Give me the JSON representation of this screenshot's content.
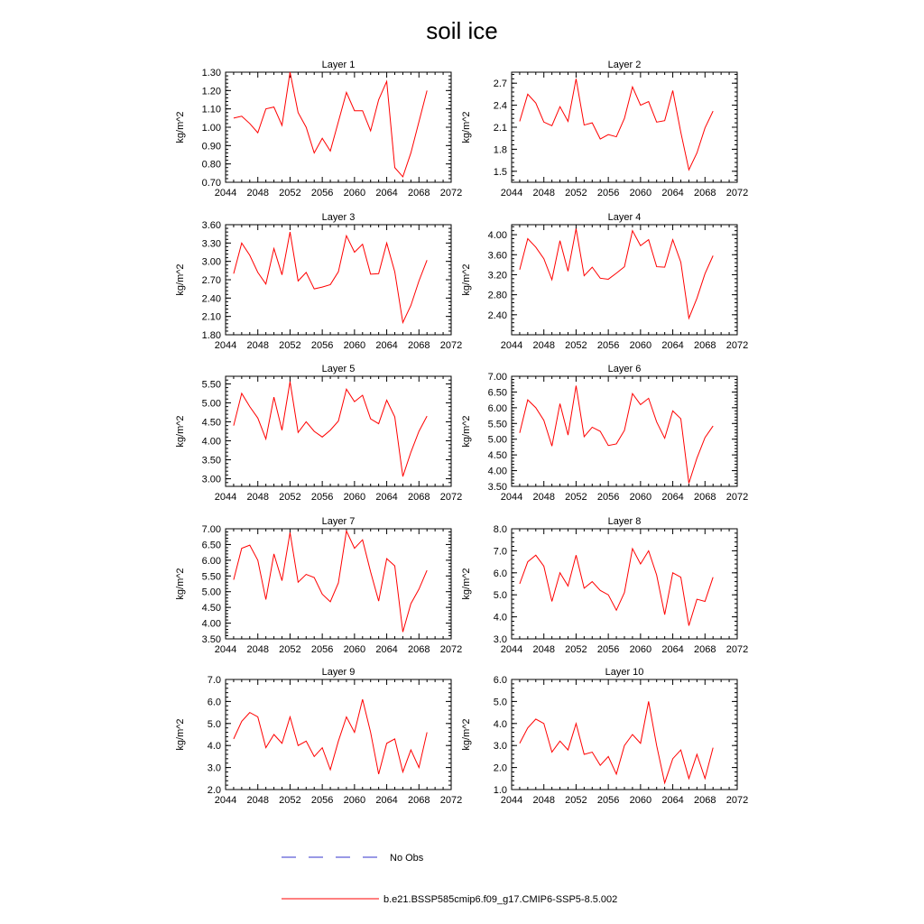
{
  "title": "soil ice",
  "legend": {
    "placement": "bottom",
    "entries": [
      {
        "label": "No Obs",
        "color": "#3333cc",
        "style": "dashed"
      },
      {
        "label": "b.e21.BSSP585cmip6.f09_g17.CMIP6-SSP5-8.5.002",
        "color": "#ff0000",
        "style": "solid"
      }
    ]
  },
  "colors": {
    "series": "#ff0000",
    "axis": "#000000"
  },
  "chart_data": [
    {
      "type": "line",
      "title": "Layer 1",
      "ylabel": "kg/m^2",
      "xlim": [
        2044,
        2072
      ],
      "ylim": [
        0.7,
        1.3
      ],
      "decimals": 2,
      "xticks": [
        2044,
        2048,
        2052,
        2056,
        2060,
        2064,
        2068,
        2072
      ],
      "yticks": [
        0.7,
        0.8,
        0.9,
        1.0,
        1.1,
        1.2,
        1.3
      ],
      "x": [
        2045,
        2046,
        2047,
        2048,
        2049,
        2050,
        2051,
        2052,
        2053,
        2054,
        2055,
        2056,
        2057,
        2058,
        2059,
        2060,
        2061,
        2062,
        2063,
        2064,
        2065,
        2066,
        2067,
        2068,
        2069
      ],
      "series": [
        {
          "name": "b.e21.BSSP585cmip6.f09_g17.CMIP6-SSP5-8.5.002",
          "values": [
            1.05,
            1.06,
            1.02,
            0.97,
            1.1,
            1.11,
            1.01,
            1.3,
            1.08,
            1.0,
            0.86,
            0.94,
            0.87,
            1.03,
            1.19,
            1.09,
            1.09,
            0.98,
            1.15,
            1.25,
            0.78,
            0.73,
            0.86,
            1.03,
            1.2
          ]
        }
      ]
    },
    {
      "type": "line",
      "title": "Layer 2",
      "ylabel": "kg/m^2",
      "xlim": [
        2044,
        2072
      ],
      "ylim": [
        1.35,
        2.85
      ],
      "decimals": 1,
      "xticks": [
        2044,
        2048,
        2052,
        2056,
        2060,
        2064,
        2068,
        2072
      ],
      "yticks": [
        1.5,
        1.8,
        2.1,
        2.4,
        2.7
      ],
      "x": [
        2045,
        2046,
        2047,
        2048,
        2049,
        2050,
        2051,
        2052,
        2053,
        2054,
        2055,
        2056,
        2057,
        2058,
        2059,
        2060,
        2061,
        2062,
        2063,
        2064,
        2065,
        2066,
        2067,
        2068,
        2069
      ],
      "series": [
        {
          "name": "b.e21.BSSP585cmip6.f09_g17.CMIP6-SSP5-8.5.002",
          "values": [
            2.18,
            2.55,
            2.43,
            2.17,
            2.12,
            2.38,
            2.18,
            2.76,
            2.13,
            2.16,
            1.94,
            2.0,
            1.97,
            2.22,
            2.65,
            2.4,
            2.45,
            2.17,
            2.19,
            2.6,
            2.03,
            1.52,
            1.75,
            2.09,
            2.32
          ]
        }
      ]
    },
    {
      "type": "line",
      "title": "Layer 3",
      "ylabel": "kg/m^2",
      "xlim": [
        2044,
        2072
      ],
      "ylim": [
        1.8,
        3.6
      ],
      "decimals": 2,
      "xticks": [
        2044,
        2048,
        2052,
        2056,
        2060,
        2064,
        2068,
        2072
      ],
      "yticks": [
        1.8,
        2.1,
        2.4,
        2.7,
        3.0,
        3.3,
        3.6
      ],
      "x": [
        2045,
        2046,
        2047,
        2048,
        2049,
        2050,
        2051,
        2052,
        2053,
        2054,
        2055,
        2056,
        2057,
        2058,
        2059,
        2060,
        2061,
        2062,
        2063,
        2064,
        2065,
        2066,
        2067,
        2068,
        2069
      ],
      "series": [
        {
          "name": "b.e21.BSSP585cmip6.f09_g17.CMIP6-SSP5-8.5.002",
          "values": [
            2.8,
            3.3,
            3.1,
            2.82,
            2.63,
            3.21,
            2.78,
            3.48,
            2.68,
            2.82,
            2.55,
            2.58,
            2.62,
            2.83,
            3.42,
            3.15,
            3.28,
            2.79,
            2.8,
            3.3,
            2.83,
            2.0,
            2.28,
            2.68,
            3.02
          ]
        }
      ]
    },
    {
      "type": "line",
      "title": "Layer 4",
      "ylabel": "kg/m^2",
      "xlim": [
        2044,
        2072
      ],
      "ylim": [
        2.0,
        4.2
      ],
      "decimals": 2,
      "xticks": [
        2044,
        2048,
        2052,
        2056,
        2060,
        2064,
        2068,
        2072
      ],
      "yticks": [
        2.4,
        2.8,
        3.2,
        3.6,
        4.0
      ],
      "x": [
        2045,
        2046,
        2047,
        2048,
        2049,
        2050,
        2051,
        2052,
        2053,
        2054,
        2055,
        2056,
        2057,
        2058,
        2059,
        2060,
        2061,
        2062,
        2063,
        2064,
        2065,
        2066,
        2067,
        2068,
        2069
      ],
      "series": [
        {
          "name": "b.e21.BSSP585cmip6.f09_g17.CMIP6-SSP5-8.5.002",
          "values": [
            3.3,
            3.92,
            3.75,
            3.52,
            3.1,
            3.88,
            3.27,
            4.12,
            3.18,
            3.35,
            3.13,
            3.11,
            3.23,
            3.36,
            4.08,
            3.78,
            3.9,
            3.36,
            3.35,
            3.9,
            3.45,
            2.33,
            2.73,
            3.22,
            3.58
          ]
        }
      ]
    },
    {
      "type": "line",
      "title": "Layer 5",
      "ylabel": "kg/m^2",
      "xlim": [
        2044,
        2072
      ],
      "ylim": [
        2.8,
        5.7
      ],
      "decimals": 2,
      "xticks": [
        2044,
        2048,
        2052,
        2056,
        2060,
        2064,
        2068,
        2072
      ],
      "yticks": [
        3.0,
        3.5,
        4.0,
        4.5,
        5.0,
        5.5
      ],
      "x": [
        2045,
        2046,
        2047,
        2048,
        2049,
        2050,
        2051,
        2052,
        2053,
        2054,
        2055,
        2056,
        2057,
        2058,
        2059,
        2060,
        2061,
        2062,
        2063,
        2064,
        2065,
        2066,
        2067,
        2068,
        2069
      ],
      "series": [
        {
          "name": "b.e21.BSSP585cmip6.f09_g17.CMIP6-SSP5-8.5.002",
          "values": [
            4.4,
            5.25,
            4.9,
            4.6,
            4.05,
            5.15,
            4.28,
            5.56,
            4.22,
            4.5,
            4.25,
            4.1,
            4.28,
            4.52,
            5.36,
            5.03,
            5.2,
            4.58,
            4.45,
            5.07,
            4.63,
            3.06,
            3.7,
            4.25,
            4.65
          ]
        }
      ]
    },
    {
      "type": "line",
      "title": "Layer 6",
      "ylabel": "kg/m^2",
      "xlim": [
        2044,
        2072
      ],
      "ylim": [
        3.5,
        7.0
      ],
      "decimals": 2,
      "xticks": [
        2044,
        2048,
        2052,
        2056,
        2060,
        2064,
        2068,
        2072
      ],
      "yticks": [
        3.5,
        4.0,
        4.5,
        5.0,
        5.5,
        6.0,
        6.5,
        7.0
      ],
      "x": [
        2045,
        2046,
        2047,
        2048,
        2049,
        2050,
        2051,
        2052,
        2053,
        2054,
        2055,
        2056,
        2057,
        2058,
        2059,
        2060,
        2061,
        2062,
        2063,
        2064,
        2065,
        2066,
        2067,
        2068,
        2069
      ],
      "series": [
        {
          "name": "b.e21.BSSP585cmip6.f09_g17.CMIP6-SSP5-8.5.002",
          "values": [
            5.2,
            6.25,
            6.0,
            5.6,
            4.78,
            6.13,
            5.13,
            6.7,
            5.08,
            5.38,
            5.25,
            4.8,
            4.85,
            5.28,
            6.45,
            6.1,
            6.3,
            5.55,
            5.03,
            5.9,
            5.65,
            3.6,
            4.4,
            5.05,
            5.42
          ]
        }
      ]
    },
    {
      "type": "line",
      "title": "Layer 7",
      "ylabel": "kg/m^2",
      "xlim": [
        2044,
        2072
      ],
      "ylim": [
        3.5,
        7.0
      ],
      "decimals": 2,
      "xticks": [
        2044,
        2048,
        2052,
        2056,
        2060,
        2064,
        2068,
        2072
      ],
      "yticks": [
        3.5,
        4.0,
        4.5,
        5.0,
        5.5,
        6.0,
        6.5,
        7.0
      ],
      "x": [
        2045,
        2046,
        2047,
        2048,
        2049,
        2050,
        2051,
        2052,
        2053,
        2054,
        2055,
        2056,
        2057,
        2058,
        2059,
        2060,
        2061,
        2062,
        2063,
        2064,
        2065,
        2066,
        2067,
        2068,
        2069
      ],
      "series": [
        {
          "name": "b.e21.BSSP585cmip6.f09_g17.CMIP6-SSP5-8.5.002",
          "values": [
            5.38,
            6.38,
            6.48,
            6.0,
            4.75,
            6.2,
            5.35,
            6.88,
            5.3,
            5.55,
            5.45,
            4.92,
            4.68,
            5.28,
            6.93,
            6.38,
            6.65,
            5.63,
            4.7,
            6.05,
            5.82,
            3.72,
            4.62,
            5.08,
            5.68
          ]
        }
      ]
    },
    {
      "type": "line",
      "title": "Layer 8",
      "ylabel": "kg/m^2",
      "xlim": [
        2044,
        2072
      ],
      "ylim": [
        3.0,
        8.0
      ],
      "decimals": 1,
      "xticks": [
        2044,
        2048,
        2052,
        2056,
        2060,
        2064,
        2068,
        2072
      ],
      "yticks": [
        3.0,
        4.0,
        5.0,
        6.0,
        7.0,
        8.0
      ],
      "x": [
        2045,
        2046,
        2047,
        2048,
        2049,
        2050,
        2051,
        2052,
        2053,
        2054,
        2055,
        2056,
        2057,
        2058,
        2059,
        2060,
        2061,
        2062,
        2063,
        2064,
        2065,
        2066,
        2067,
        2068,
        2069
      ],
      "series": [
        {
          "name": "b.e21.BSSP585cmip6.f09_g17.CMIP6-SSP5-8.5.002",
          "values": [
            5.5,
            6.5,
            6.8,
            6.3,
            4.7,
            6.0,
            5.4,
            6.8,
            5.3,
            5.6,
            5.2,
            5.0,
            4.3,
            5.1,
            7.1,
            6.4,
            7.0,
            5.9,
            4.1,
            6.0,
            5.8,
            3.6,
            4.8,
            4.7,
            5.8
          ]
        }
      ]
    },
    {
      "type": "line",
      "title": "Layer 9",
      "ylabel": "kg/m^2",
      "xlim": [
        2044,
        2072
      ],
      "ylim": [
        2.0,
        7.0
      ],
      "decimals": 1,
      "xticks": [
        2044,
        2048,
        2052,
        2056,
        2060,
        2064,
        2068,
        2072
      ],
      "yticks": [
        2.0,
        3.0,
        4.0,
        5.0,
        6.0,
        7.0
      ],
      "x": [
        2045,
        2046,
        2047,
        2048,
        2049,
        2050,
        2051,
        2052,
        2053,
        2054,
        2055,
        2056,
        2057,
        2058,
        2059,
        2060,
        2061,
        2062,
        2063,
        2064,
        2065,
        2066,
        2067,
        2068,
        2069
      ],
      "series": [
        {
          "name": "b.e21.BSSP585cmip6.f09_g17.CMIP6-SSP5-8.5.002",
          "values": [
            4.3,
            5.1,
            5.5,
            5.3,
            3.9,
            4.5,
            4.1,
            5.3,
            4.0,
            4.2,
            3.5,
            3.9,
            2.9,
            4.2,
            5.3,
            4.6,
            6.1,
            4.6,
            2.7,
            4.1,
            4.3,
            2.8,
            3.8,
            3.0,
            4.6
          ]
        }
      ]
    },
    {
      "type": "line",
      "title": "Layer 10",
      "ylabel": "kg/m^2",
      "xlim": [
        2044,
        2072
      ],
      "ylim": [
        1.0,
        6.0
      ],
      "decimals": 1,
      "xticks": [
        2044,
        2048,
        2052,
        2056,
        2060,
        2064,
        2068,
        2072
      ],
      "yticks": [
        1.0,
        2.0,
        3.0,
        4.0,
        5.0,
        6.0
      ],
      "x": [
        2045,
        2046,
        2047,
        2048,
        2049,
        2050,
        2051,
        2052,
        2053,
        2054,
        2055,
        2056,
        2057,
        2058,
        2059,
        2060,
        2061,
        2062,
        2063,
        2064,
        2065,
        2066,
        2067,
        2068,
        2069
      ],
      "series": [
        {
          "name": "b.e21.BSSP585cmip6.f09_g17.CMIP6-SSP5-8.5.002",
          "values": [
            3.1,
            3.8,
            4.2,
            4.0,
            2.7,
            3.2,
            2.8,
            4.0,
            2.6,
            2.7,
            2.1,
            2.5,
            1.7,
            3.0,
            3.5,
            3.1,
            5.0,
            3.0,
            1.3,
            2.4,
            2.8,
            1.5,
            2.6,
            1.5,
            2.9
          ]
        }
      ]
    }
  ]
}
